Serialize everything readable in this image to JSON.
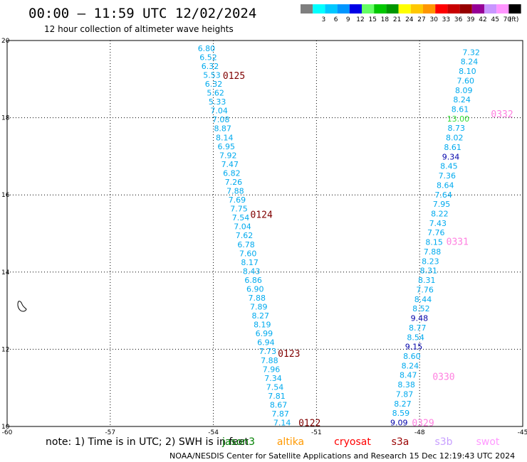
{
  "header": {
    "title": "00:00 – 11:59 UTC 12/02/2024",
    "subtitle": "12 hour collection of altimeter wave heights"
  },
  "colorbar": {
    "unit": "(ft)",
    "bins": [
      {
        "label": "",
        "color": "#7f7f7f"
      },
      {
        "label": "3",
        "color": "#00ffff"
      },
      {
        "label": "6",
        "color": "#00c8ff"
      },
      {
        "label": "9",
        "color": "#0096ff"
      },
      {
        "label": "12",
        "color": "#0000e6"
      },
      {
        "label": "15",
        "color": "#64ff64"
      },
      {
        "label": "18",
        "color": "#00c800"
      },
      {
        "label": "21",
        "color": "#009600"
      },
      {
        "label": "24",
        "color": "#ffff00"
      },
      {
        "label": "27",
        "color": "#ffc800"
      },
      {
        "label": "30",
        "color": "#ff9600"
      },
      {
        "label": "33",
        "color": "#ff0000"
      },
      {
        "label": "36",
        "color": "#c80000"
      },
      {
        "label": "39",
        "color": "#960000"
      },
      {
        "label": "42",
        "color": "#960096"
      },
      {
        "label": "45",
        "color": "#c896ff"
      },
      {
        "label": "70",
        "color": "#ff96ff"
      },
      {
        "label": "",
        "color": "#000000"
      }
    ]
  },
  "chart_data": {
    "type": "scatter",
    "title": "00:00 – 11:59 UTC 12/02/2024",
    "subtitle": "12 hour collection of altimeter wave heights",
    "xlim": [
      -60,
      -45
    ],
    "ylim": [
      10,
      20
    ],
    "x_ticks": [
      "-60",
      "-57",
      "-54",
      "-51",
      "-48",
      "-45"
    ],
    "y_ticks": [
      "10",
      "12",
      "14",
      "16",
      "18",
      "20"
    ],
    "grid": true,
    "units": "ft",
    "color_light": "#00aaee",
    "color_dark": "#0000aa",
    "color_green": "#33dd33",
    "tracks": [
      {
        "x_start": -54.2,
        "x_end": -52.0,
        "y_start": 19.8,
        "y_end": 10.1,
        "values": [
          "6.80",
          "6.52",
          "6.32",
          "5.53",
          "6.32",
          "5.62",
          "5.33",
          "7.04",
          "7.08",
          "8.87",
          "8.14",
          "6.95",
          "7.92",
          "7.47",
          "6.82",
          "7.26",
          "7.88",
          "7.69",
          "7.75",
          "7.54",
          "7.04",
          "7.62",
          "6.78",
          "7.60",
          "8.17",
          "8.43",
          "6.86",
          "6.90",
          "7.88",
          "7.89",
          "8.27",
          "8.19",
          "6.99",
          "6.94",
          "7.73",
          "7.88",
          "7.96",
          "7.34",
          "7.54",
          "7.81",
          "8.67",
          "7.87",
          "7.14"
        ],
        "dark": [],
        "green": []
      },
      {
        "x_start": -46.5,
        "x_end": -48.6,
        "y_start": 19.7,
        "y_end": 10.1,
        "values": [
          "7.32",
          "8.24",
          "8.10",
          "7.60",
          "8.09",
          "8.24",
          "8.61",
          "13.00",
          "8.73",
          "8.02",
          "8.61",
          "9.34",
          "8.45",
          "7.36",
          "8.64",
          "7.64",
          "7.95",
          "8.22",
          "7.43",
          "7.76",
          "8.15",
          "7.88",
          "8.23",
          "8.31",
          "8.31",
          "7.76",
          "8.44",
          "8.52",
          "9.48",
          "8.77",
          "8.54",
          "9.15",
          "8.60",
          "8.24",
          "8.47",
          "8.38",
          "7.87",
          "8.27",
          "8.59",
          "9.09"
        ],
        "dark": [
          11,
          28,
          31,
          39
        ],
        "green": [
          7
        ]
      }
    ],
    "pass_labels": [
      {
        "label": "0125",
        "x": -53.4,
        "y": 19.1,
        "color": "#800000"
      },
      {
        "label": "0124",
        "x": -52.6,
        "y": 15.5,
        "color": "#800000"
      },
      {
        "label": "0123",
        "x": -51.8,
        "y": 11.9,
        "color": "#800000"
      },
      {
        "label": "0122",
        "x": -51.2,
        "y": 10.1,
        "color": "#800000"
      },
      {
        "label": "0332",
        "x": -45.6,
        "y": 18.1,
        "color": "#ff80e0"
      },
      {
        "label": "0331",
        "x": -46.9,
        "y": 14.8,
        "color": "#ff80e0"
      },
      {
        "label": "0330",
        "x": -47.3,
        "y": 11.3,
        "color": "#ff80e0"
      },
      {
        "label": "0329",
        "x": -47.9,
        "y": 10.1,
        "color": "#ff80e0"
      }
    ]
  },
  "notes": {
    "note": "note: 1) Time is in UTC; 2) SWH is in feet",
    "footer": "NOAA/NESDIS Center for Satellite Applications and Research    15 Dec 12:19:43 UTC 2024"
  },
  "satellites": [
    {
      "name": "jason3",
      "color": "#008000"
    },
    {
      "name": "altika",
      "color": "#ff9900"
    },
    {
      "name": "cryosat",
      "color": "#ff0000"
    },
    {
      "name": "s3a",
      "color": "#990000"
    },
    {
      "name": "s3b",
      "color": "#c8a0ff"
    },
    {
      "name": "swot",
      "color": "#ff99ff"
    }
  ]
}
